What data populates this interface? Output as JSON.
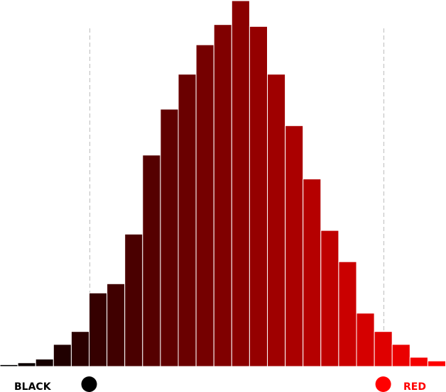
{
  "chart_data": {
    "type": "bar",
    "title": "",
    "xlabel": "",
    "ylabel": "",
    "values": [
      1,
      2,
      4,
      12,
      19,
      40,
      45,
      72,
      115,
      140,
      159,
      175,
      186,
      199,
      185,
      159,
      131,
      102,
      74,
      57,
      29,
      19,
      12,
      5,
      3
    ],
    "left_label": "BLACK",
    "right_label": "RED",
    "left_color": "#000000",
    "right_color": "#ff0000",
    "marker_left_index": 4.5,
    "marker_right_index": 21,
    "grid": false,
    "legend": "none"
  }
}
